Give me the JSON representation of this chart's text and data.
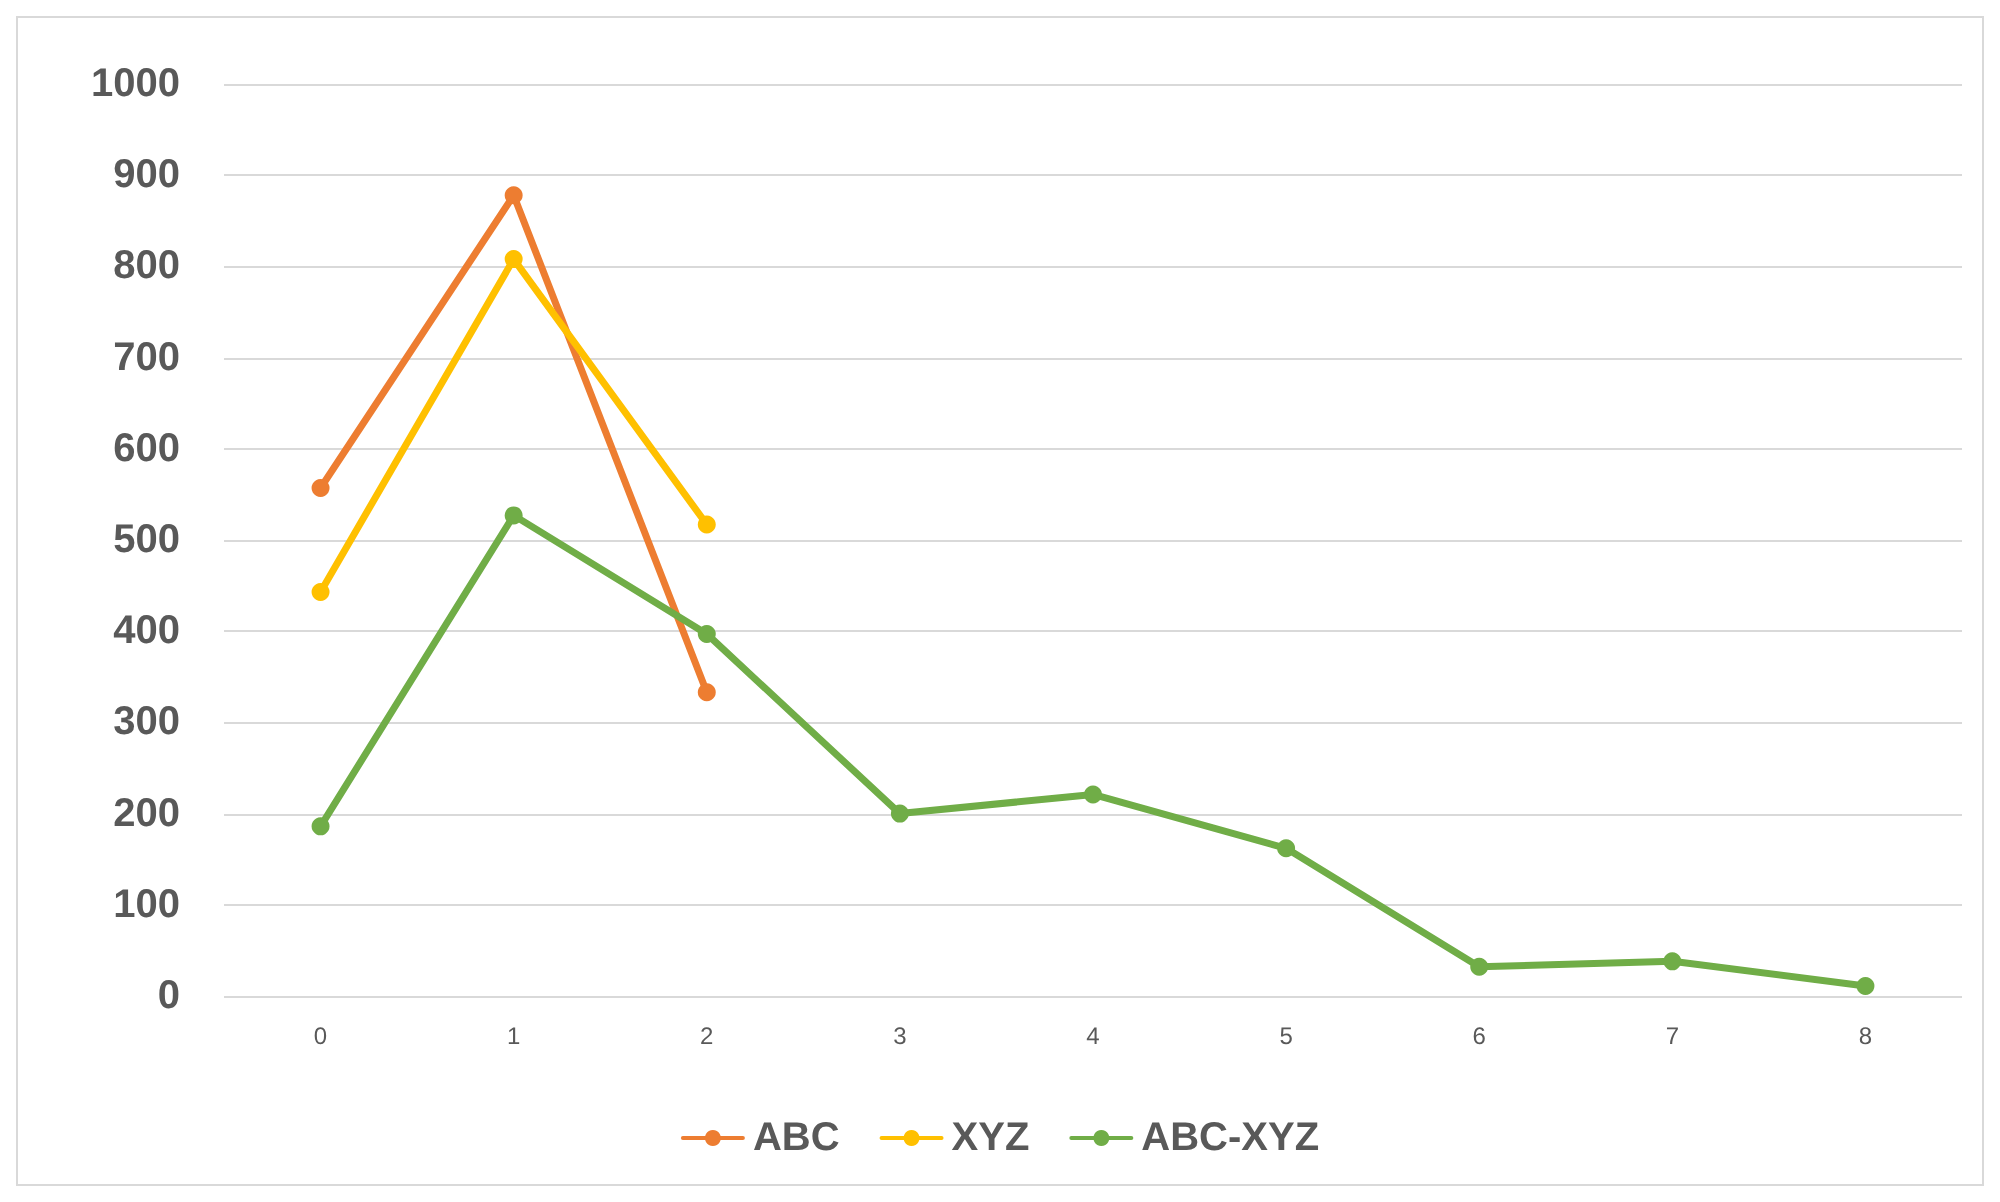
{
  "chart_data": {
    "type": "line",
    "categories": [
      "0",
      "1",
      "2",
      "3",
      "4",
      "5",
      "6",
      "7",
      "8"
    ],
    "series": [
      {
        "name": "ABC",
        "color": "#ed7d31",
        "values": [
          557,
          878,
          333,
          null,
          null,
          null,
          null,
          null,
          null
        ]
      },
      {
        "name": "XYZ",
        "color": "#ffc000",
        "values": [
          443,
          808,
          517,
          null,
          null,
          null,
          null,
          null,
          null
        ]
      },
      {
        "name": "ABC-XYZ",
        "color": "#70ad47",
        "values": [
          186,
          527,
          397,
          200,
          221,
          162,
          32,
          38,
          11
        ]
      }
    ],
    "ylim": [
      0,
      1000
    ],
    "yticks": [
      0,
      100,
      200,
      300,
      400,
      500,
      600,
      700,
      800,
      900,
      1000
    ],
    "grid": "y",
    "legend": "bottom",
    "marker": "circle",
    "line_style": "solid"
  }
}
